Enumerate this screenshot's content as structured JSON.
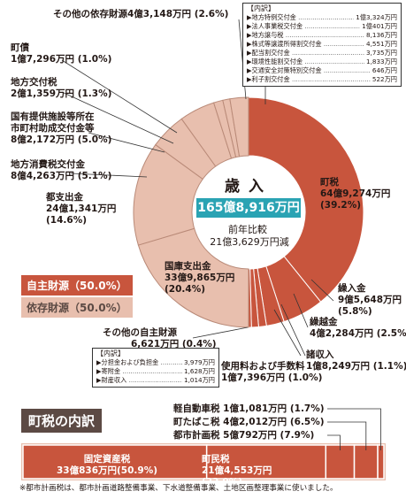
{
  "chart_data": {
    "type": "pie",
    "center": {
      "title": "歳入",
      "total": "165億8,916万円",
      "compare_label": "前年比較",
      "compare_value": "21億3,629万円減"
    },
    "slices": [
      {
        "name": "町税",
        "value_text": "64億9,274万円",
        "percent_text": "(39.2%)",
        "percent": 39.2,
        "group": "own"
      },
      {
        "name": "繰入金",
        "value_text": "9億5,648万円",
        "percent_text": "(5.8%)",
        "percent": 5.8,
        "group": "own"
      },
      {
        "name": "繰越金",
        "value_text": "4億2,284万円",
        "percent_text": "(2.5%)",
        "percent": 2.5,
        "group": "own"
      },
      {
        "name": "諸収入",
        "value_text": "1億8,249万円",
        "percent_text": "(1.1%)",
        "percent": 1.1,
        "group": "own"
      },
      {
        "name": "使用料および手数料",
        "value_text": "1億7,396万円",
        "percent_text": "(1.0%)",
        "percent": 1.0,
        "group": "own"
      },
      {
        "name": "その他の自主財源",
        "value_text": "6,621万円",
        "percent_text": "(0.4%)",
        "percent": 0.4,
        "group": "own"
      },
      {
        "name": "国庫支出金",
        "value_text": "33億9,865万円",
        "percent_text": "(20.4%)",
        "percent": 20.4,
        "group": "dep"
      },
      {
        "name": "都支出金",
        "value_text": "24億1,341万円",
        "percent_text": "(14.6%)",
        "percent": 14.6,
        "group": "dep"
      },
      {
        "name": "地方消費税交付金",
        "value_text": "8億4,263万円",
        "percent_text": "(5.1%)",
        "percent": 5.1,
        "group": "dep"
      },
      {
        "name": "国有提供施設等所在市町村助成交付金等",
        "value_text": "8億2,172万円",
        "percent_text": "(5.0%)",
        "percent": 5.0,
        "group": "dep"
      },
      {
        "name": "地方交付税",
        "value_text": "2億1,359万円",
        "percent_text": "(1.3%)",
        "percent": 1.3,
        "group": "dep"
      },
      {
        "name": "町債",
        "value_text": "1億7,296万円",
        "percent_text": "(1.0%)",
        "percent": 1.0,
        "group": "dep"
      },
      {
        "name": "その他の依存財源",
        "value_text": "4億3,148万円",
        "percent_text": "(2.6%)",
        "percent": 2.6,
        "group": "dep"
      }
    ],
    "legend": [
      {
        "label": "自主財源（50.0%）",
        "color": "#c8553d"
      },
      {
        "label": "依存財源（50.0%）",
        "color": "#e8bfae"
      }
    ],
    "colors": {
      "own": "#c8553d",
      "dep": "#e8bfae",
      "own_stroke": "#ffffff",
      "dep_stroke": "#b98a78"
    }
  },
  "labels": {
    "tax": {
      "name": "町税",
      "v": "64億9,274万円",
      "p": "(39.2%)"
    },
    "kuriire": {
      "name": "繰入金",
      "v": "9億5,648万円",
      "p": "(5.8%)"
    },
    "kurikoshi": {
      "name": "繰越金",
      "v": "4億2,284万円",
      "p": "(2.5%)"
    },
    "shoshu": {
      "name": "諸収入",
      "v": "1億8,249万円",
      "p": "(1.1%)"
    },
    "shiyo": {
      "name": "使用料および手数料",
      "v": "1億7,396万円",
      "p": "(1.0%)"
    },
    "other_own": {
      "name": "その他の自主財源",
      "v": "6,621万円",
      "p": "(0.4%)"
    },
    "kokko": {
      "name": "国庫支出金",
      "v": "33億9,865万円",
      "p": "(20.4%)"
    },
    "toshi": {
      "name": "都支出金",
      "v": "24億1,341万円",
      "p": "(14.6%)"
    },
    "shohi": {
      "name": "地方消費税交付金",
      "v": "8億4,263万円",
      "p": "(5.1%)"
    },
    "kokuyu1": "国有提供施設等所在",
    "kokuyu2": "市町村助成交付金等",
    "kokuyu_v": "8億2,172万円",
    "kokuyu_p": "(5.0%)",
    "kofuzei": {
      "name": "地方交付税",
      "v": "2億1,359万円",
      "p": "(1.3%)"
    },
    "machisai": {
      "name": "町債",
      "v": "1億7,296万円",
      "p": "(1.0%)"
    },
    "other_dep": {
      "name": "その他の依存財源",
      "v": "4億3,148万円",
      "p": "(2.6%)"
    }
  },
  "dep_breakdown": {
    "title": "【内訳】",
    "rows": [
      {
        "n": "▶地方特例交付金",
        "v": "1億3,324万円"
      },
      {
        "n": "▶法人事業税交付金",
        "v": "1億401万円"
      },
      {
        "n": "▶地方譲与税",
        "v": "8,136万円"
      },
      {
        "n": "▶株式等譲渡所得割交付金",
        "v": "4,551万円"
      },
      {
        "n": "▶配当割交付金",
        "v": "3,735万円"
      },
      {
        "n": "▶環境性能割交付金",
        "v": "1,833万円"
      },
      {
        "n": "▶交通安全対策特別交付金",
        "v": "646万円"
      },
      {
        "n": "▶利子割交付金",
        "v": "522万円"
      }
    ]
  },
  "own_breakdown": {
    "title": "【内訳】",
    "rows": [
      {
        "n": "▶分担金および負担金",
        "v": "3,979万円"
      },
      {
        "n": "▶寄附金",
        "v": "1,628万円"
      },
      {
        "n": "▶財産収入",
        "v": "1,014万円"
      }
    ]
  },
  "tax_section": {
    "title": "町税の内訳",
    "small": [
      {
        "name": "軽自動車税",
        "v": "1億1,081万円",
        "p": "(1.7%)"
      },
      {
        "name": "町たばこ税",
        "v": "4億2,012万円",
        "p": "(6.5%)"
      },
      {
        "name": "都市計画税",
        "v": "5億792万円",
        "p": "(7.9%)"
      }
    ],
    "bar": [
      {
        "name": "固定資産税",
        "v": "33億836万円",
        "p": "(50.9%)",
        "percent": 50.9
      },
      {
        "name": "町民税",
        "v": "21億4,553万円",
        "p": "(33.0%)",
        "percent": 33.0
      },
      {
        "name": "都市計画税",
        "percent": 7.9
      },
      {
        "name": "町たばこ税",
        "percent": 6.5
      },
      {
        "name": "軽自動車税",
        "percent": 1.7
      }
    ],
    "note": "※都市計画税は、都市計画道路整備事業、下水道整備事業、土地区画整理事業に使いました。"
  }
}
